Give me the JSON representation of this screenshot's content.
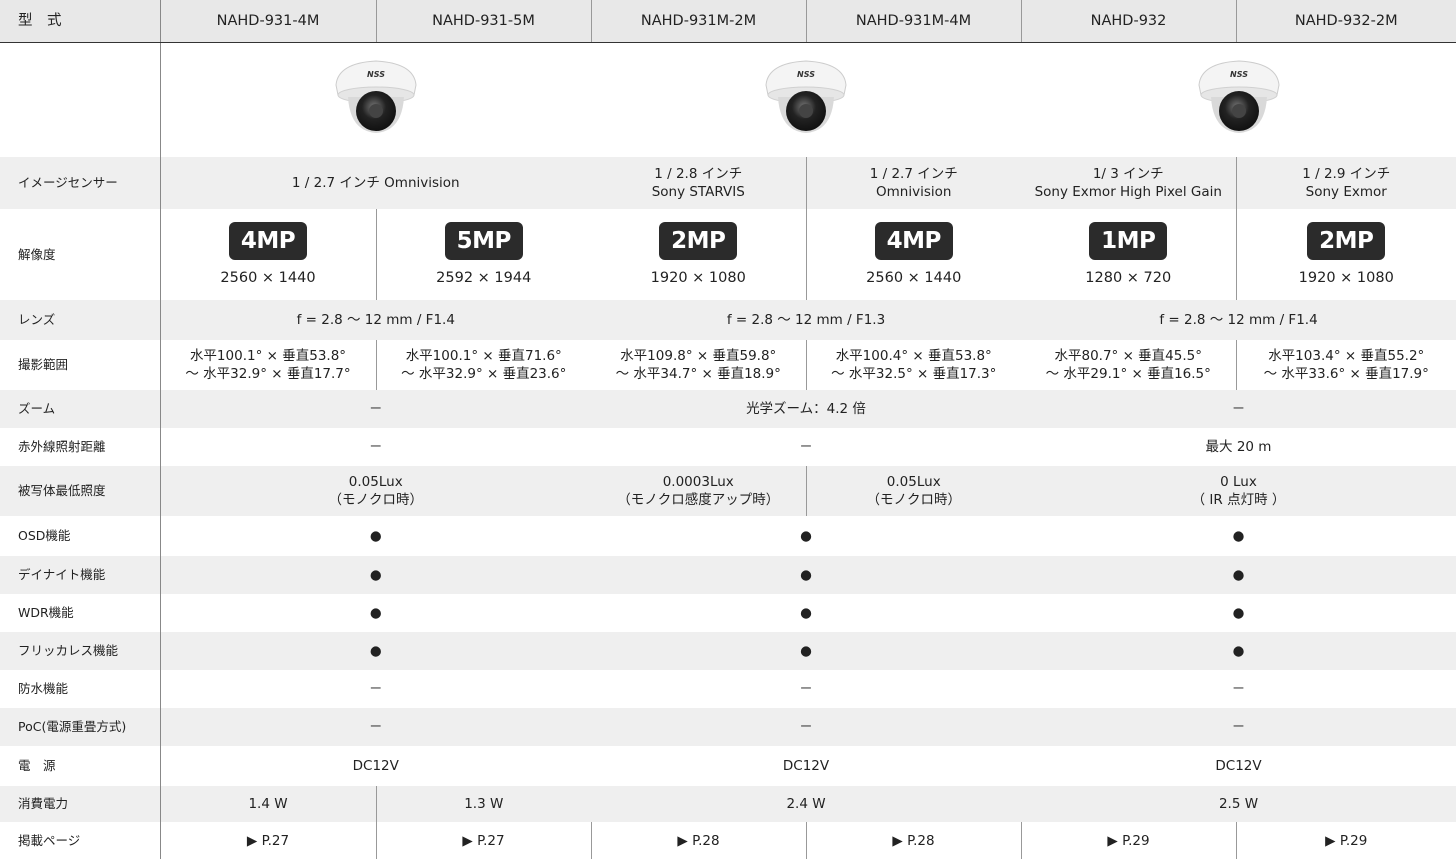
{
  "header": {
    "label": "型　式",
    "models": [
      "NAHD-931-4M",
      "NAHD-931-5M",
      "NAHD-931M-2M",
      "NAHD-931M-4M",
      "NAHD-932",
      "NAHD-932-2M"
    ]
  },
  "camera_logo": "NSS",
  "rows": [
    {
      "label": "イメージセンサー",
      "cells": [
        [
          "1 / 2.7 インチ Omnivision"
        ],
        [
          "1 / 2.8 インチ",
          "Sony STARVIS"
        ],
        [
          "1 / 2.7 インチ",
          "Omnivision"
        ],
        [
          "1/ 3 インチ",
          "Sony Exmor High Pixel Gain"
        ],
        [
          "1 / 2.9 インチ",
          "Sony Exmor"
        ]
      ]
    },
    {
      "label": "解像度",
      "cells": [
        {
          "badge": "4MP",
          "resolution": "2560 × 1440"
        },
        {
          "badge": "5MP",
          "resolution": "2592 × 1944"
        },
        {
          "badge": "2MP",
          "resolution": "1920 × 1080"
        },
        {
          "badge": "4MP",
          "resolution": "2560 × 1440"
        },
        {
          "badge": "1MP",
          "resolution": "1280 × 720"
        },
        {
          "badge": "2MP",
          "resolution": "1920 × 1080"
        }
      ]
    },
    {
      "label": "レンズ",
      "cells": [
        [
          "f = 2.8 ～ 12 mm / F1.4"
        ],
        [
          "f = 2.8 ～ 12 mm / F1.3"
        ],
        [
          "f = 2.8 ～ 12 mm / F1.4"
        ]
      ]
    },
    {
      "label": "撮影範囲",
      "cells": [
        [
          "水平100.1° × 垂直53.8°",
          "～ 水平32.9° × 垂直17.7°"
        ],
        [
          "水平100.1° × 垂直71.6°",
          "～ 水平32.9° × 垂直23.6°"
        ],
        [
          "水平109.8° × 垂直59.8°",
          "～ 水平34.7° × 垂直18.9°"
        ],
        [
          "水平100.4° × 垂直53.8°",
          "～ 水平32.5° × 垂直17.3°"
        ],
        [
          "水平80.7° × 垂直45.5°",
          "～ 水平29.1° × 垂直16.5°"
        ],
        [
          "水平103.4° × 垂直55.2°",
          "～ 水平33.6° × 垂直17.9°"
        ]
      ]
    },
    {
      "label": "ズーム",
      "cells": [
        [
          "－"
        ],
        [
          "光学ズーム：4.2 倍"
        ],
        [
          "－"
        ]
      ]
    },
    {
      "label": "赤外線照射距離",
      "cells": [
        [
          "－"
        ],
        [
          "－"
        ],
        [
          "最大 20 m"
        ]
      ]
    },
    {
      "label": "被写体最低照度",
      "cells": [
        [
          "0.05Lux",
          "（モノクロ時）"
        ],
        [
          "0.0003Lux",
          "（モノクロ感度アップ時）"
        ],
        [
          "0.05Lux",
          "（モノクロ時）"
        ],
        [
          "0 Lux",
          "（ IR 点灯時 ）"
        ]
      ]
    },
    {
      "label": "OSD機能",
      "cells": [
        [
          "●"
        ],
        [
          "●"
        ],
        [
          "●"
        ]
      ]
    },
    {
      "label": "デイナイト機能",
      "cells": [
        [
          "●"
        ],
        [
          "●"
        ],
        [
          "●"
        ]
      ]
    },
    {
      "label": "WDR機能",
      "cells": [
        [
          "●"
        ],
        [
          "●"
        ],
        [
          "●"
        ]
      ]
    },
    {
      "label": "フリッカレス機能",
      "cells": [
        [
          "●"
        ],
        [
          "●"
        ],
        [
          "●"
        ]
      ]
    },
    {
      "label": "防水機能",
      "cells": [
        [
          "－"
        ],
        [
          "－"
        ],
        [
          "－"
        ]
      ]
    },
    {
      "label": "PoC(電源重畳方式)",
      "cells": [
        [
          "－"
        ],
        [
          "－"
        ],
        [
          "－"
        ]
      ]
    },
    {
      "label": "電　源",
      "cells": [
        [
          "DC12V"
        ],
        [
          "DC12V"
        ],
        [
          "DC12V"
        ]
      ]
    },
    {
      "label": "消費電力",
      "cells": [
        [
          "1.4 W"
        ],
        [
          "1.3 W"
        ],
        [
          "2.4 W"
        ],
        [
          "2.5 W"
        ]
      ]
    },
    {
      "label": "掲載ページ",
      "cells": [
        [
          "▶ P.27"
        ],
        [
          "▶ P.27"
        ],
        [
          "▶ P.28"
        ],
        [
          "▶ P.28"
        ],
        [
          "▶ P.29"
        ],
        [
          "▶ P.29"
        ]
      ]
    }
  ]
}
